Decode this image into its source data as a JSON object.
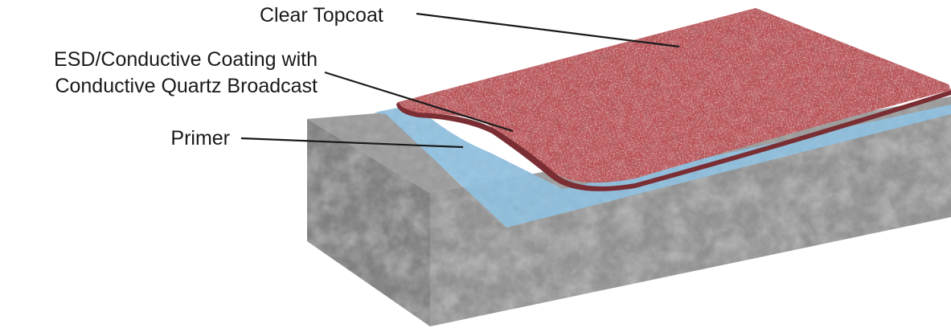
{
  "labels": {
    "topcoat": "Clear Topcoat",
    "esd_line1": "ESD/Conductive Coating with",
    "esd_line2": "Conductive Quartz Broadcast",
    "primer": "Primer"
  },
  "colors": {
    "concrete": "#8c8c8c",
    "concrete_dark": "#5e5e5e",
    "primer": "#8cc0e0",
    "coating": "#b8464b",
    "topcoat_edge": "#7a2e33",
    "leader": "#1a1a1a"
  }
}
